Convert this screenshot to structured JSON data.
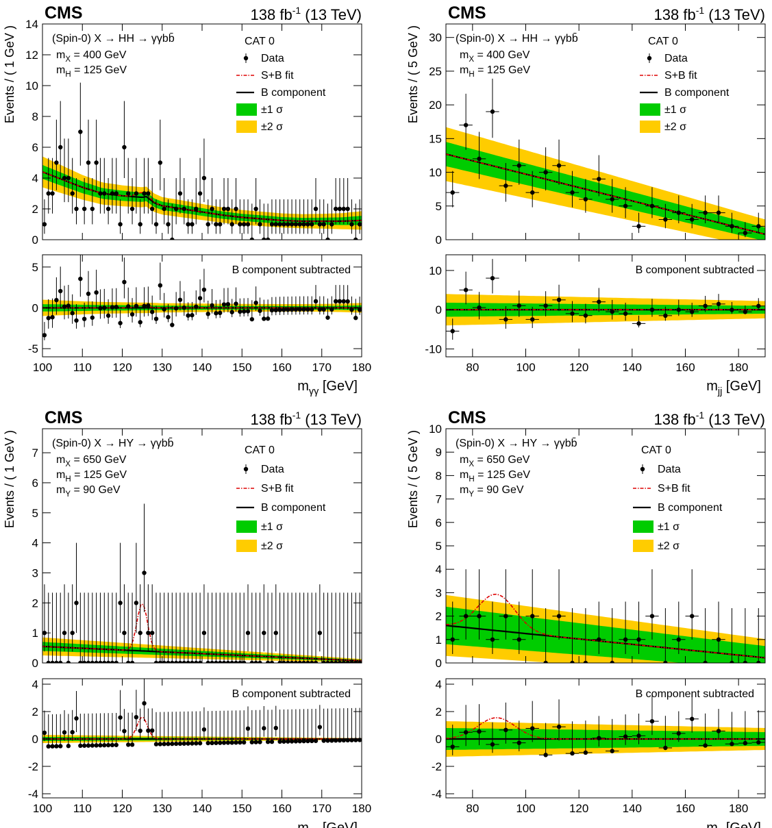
{
  "chart_data": [
    {
      "type": "scatter",
      "panel": "top-left",
      "header": {
        "experiment": "CMS",
        "lumi": "138 fb",
        "lumi_sup": "-1",
        "energy": "(13 TeV)"
      },
      "process": "(Spin-0) X → HH → γγbb̄",
      "masses": [
        "m_X = 400 GeV",
        "m_H = 125 GeV"
      ],
      "category": "CAT 0",
      "legend": {
        "data": "Data",
        "sb": "S+B fit",
        "b": "B component",
        "s1": "±1 σ",
        "s2": "±2 σ"
      },
      "ylabel": "Events / ( 1 GeV )",
      "xlabel": "m_γγ [GeV]",
      "sub_label": "B component subtracted",
      "xlim": [
        100,
        180
      ],
      "ylim": [
        0,
        14
      ],
      "sub_ylim": [
        -6,
        6.5
      ],
      "xticks": [
        100,
        110,
        120,
        130,
        140,
        150,
        160,
        170,
        180
      ],
      "yticks": [
        0,
        2,
        4,
        6,
        8,
        10,
        12,
        14
      ],
      "sub_yticks": [
        -5,
        0,
        5
      ],
      "data_x": [
        100.5,
        101.5,
        102.5,
        103.5,
        104.5,
        105.5,
        106.5,
        107.5,
        108.5,
        109.5,
        110.5,
        111.5,
        112.5,
        113.5,
        114.5,
        115.5,
        116.5,
        117.5,
        118.5,
        119.5,
        120.5,
        121.5,
        122.5,
        123.5,
        124.5,
        125.5,
        126.5,
        127.5,
        128.5,
        129.5,
        130.5,
        131.5,
        132.5,
        133.5,
        134.5,
        135.5,
        136.5,
        137.5,
        138.5,
        139.5,
        140.5,
        141.5,
        142.5,
        143.5,
        144.5,
        145.5,
        146.5,
        147.5,
        148.5,
        149.5,
        150.5,
        151.5,
        152.5,
        153.5,
        154.5,
        155.5,
        156.5,
        157.5,
        158.5,
        159.5,
        160.5,
        161.5,
        162.5,
        163.5,
        164.5,
        165.5,
        166.5,
        167.5,
        168.5,
        169.5,
        170.5,
        171.5,
        172.5,
        173.5,
        174.5,
        175.5,
        176.5,
        177.5,
        178.5,
        179.5
      ],
      "data_y": [
        1,
        3,
        3,
        5,
        6,
        4,
        4,
        3,
        2,
        7,
        2,
        5,
        2,
        5,
        3,
        3,
        2,
        3,
        3,
        1,
        6,
        3,
        2,
        3,
        1,
        3,
        3,
        2,
        1,
        5,
        2,
        1,
        0,
        2,
        3,
        2,
        1,
        1,
        2,
        3,
        4,
        1,
        2,
        1,
        1,
        2,
        2,
        1,
        2,
        1,
        1,
        1,
        0,
        2,
        1,
        0,
        0,
        1,
        1,
        1,
        1,
        1,
        1,
        1,
        1,
        1,
        1,
        1,
        2,
        1,
        1,
        0,
        1,
        2,
        2,
        2,
        2,
        1,
        0,
        1
      ],
      "bkg_x": [
        100,
        105,
        110,
        115,
        120,
        125,
        126,
        128,
        130,
        135,
        140,
        145,
        150,
        155,
        160,
        165,
        170,
        175,
        180
      ],
      "bkg_y": [
        4.4,
        3.9,
        3.4,
        3.0,
        2.85,
        2.75,
        2.8,
        2.4,
        2.2,
        2.0,
        1.8,
        1.6,
        1.45,
        1.35,
        1.25,
        1.2,
        1.2,
        1.2,
        1.25
      ],
      "band1": [
        0.45,
        0.42,
        0.38,
        0.35,
        0.33,
        0.3,
        0.3,
        0.28,
        0.27,
        0.26,
        0.25,
        0.24,
        0.23,
        0.23,
        0.22,
        0.22,
        0.23,
        0.25,
        0.3
      ],
      "band2": [
        1.0,
        0.9,
        0.8,
        0.72,
        0.68,
        0.65,
        0.65,
        0.6,
        0.57,
        0.55,
        0.52,
        0.5,
        0.48,
        0.47,
        0.46,
        0.46,
        0.48,
        0.52,
        0.6
      ],
      "sig": {
        "center": 125,
        "width": 1.5,
        "amp": 0.3
      }
    },
    {
      "type": "scatter",
      "panel": "top-right",
      "header": {
        "experiment": "CMS",
        "lumi": "138 fb",
        "lumi_sup": "-1",
        "energy": "(13 TeV)"
      },
      "process": "(Spin-0) X → HH → γγbb̄",
      "masses": [
        "m_X = 400 GeV",
        "m_H = 125 GeV"
      ],
      "category": "CAT 0",
      "legend": {
        "data": "Data",
        "sb": "S+B fit",
        "b": "B component",
        "s1": "±1 σ",
        "s2": "±2 σ"
      },
      "ylabel": "Events / ( 5 GeV )",
      "xlabel": "m_jj [GeV]",
      "sub_label": "B component subtracted",
      "xlim": [
        70,
        190
      ],
      "ylim": [
        0,
        32
      ],
      "sub_ylim": [
        -12,
        14
      ],
      "xticks": [
        80,
        100,
        120,
        140,
        160,
        180
      ],
      "yticks": [
        0,
        5,
        10,
        15,
        20,
        25,
        30
      ],
      "sub_yticks": [
        -10,
        0,
        10
      ],
      "data_x": [
        72.5,
        77.5,
        82.5,
        87.5,
        92.5,
        97.5,
        102.5,
        107.5,
        112.5,
        117.5,
        122.5,
        127.5,
        132.5,
        137.5,
        142.5,
        147.5,
        152.5,
        157.5,
        162.5,
        167.5,
        172.5,
        177.5,
        182.5,
        187.5
      ],
      "data_y": [
        7,
        17,
        12,
        19,
        8,
        11,
        7,
        10,
        11,
        7,
        6,
        9,
        6,
        5,
        2,
        5,
        3,
        4,
        3,
        4,
        4,
        2,
        1,
        2
      ],
      "bkg_x": [
        70,
        190
      ],
      "bkg_y": [
        12.7,
        0.8
      ],
      "band1": [
        1.8,
        1.0
      ],
      "band2": [
        4.0,
        2.2
      ],
      "sig": {
        "center": 125,
        "width": 5,
        "amp": 0
      }
    },
    {
      "type": "scatter",
      "panel": "bottom-left",
      "header": {
        "experiment": "CMS",
        "lumi": "138 fb",
        "lumi_sup": "-1",
        "energy": "(13 TeV)"
      },
      "process": "(Spin-0) X → HY → γγbb̄",
      "masses": [
        "m_X = 650 GeV",
        "m_H = 125 GeV",
        "m_Y = 90 GeV"
      ],
      "category": "CAT 0",
      "legend": {
        "data": "Data",
        "sb": "S+B fit",
        "b": "B component",
        "s1": "±1 σ",
        "s2": "±2 σ"
      },
      "ylabel": "Events / ( 1 GeV )",
      "xlabel": "m_γγ [GeV]",
      "sub_label": "B component subtracted",
      "xlim": [
        100,
        180
      ],
      "ylim": [
        0,
        7.8
      ],
      "sub_ylim": [
        -4.3,
        4.4
      ],
      "xticks": [
        100,
        110,
        120,
        130,
        140,
        150,
        160,
        170,
        180
      ],
      "yticks": [
        0,
        1,
        2,
        3,
        4,
        5,
        6,
        7
      ],
      "sub_yticks": [
        -4,
        -2,
        0,
        2,
        4
      ],
      "data_x": [
        100.5,
        101.5,
        102.5,
        103.5,
        104.5,
        105.5,
        106.5,
        107.5,
        108.5,
        109.5,
        110.5,
        111.5,
        112.5,
        113.5,
        114.5,
        115.5,
        116.5,
        117.5,
        118.5,
        119.5,
        120.5,
        121.5,
        122.5,
        123.5,
        124.5,
        125.5,
        126.5,
        127.5,
        128.5,
        129.5,
        130.5,
        131.5,
        132.5,
        133.5,
        134.5,
        135.5,
        136.5,
        137.5,
        138.5,
        139.5,
        140.5,
        141.5,
        142.5,
        143.5,
        144.5,
        145.5,
        146.5,
        147.5,
        148.5,
        149.5,
        150.5,
        151.5,
        152.5,
        153.5,
        154.5,
        155.5,
        156.5,
        157.5,
        158.5,
        159.5,
        160.5,
        161.5,
        162.5,
        163.5,
        164.5,
        165.5,
        166.5,
        167.5,
        168.5,
        169.5,
        170.5,
        171.5,
        172.5,
        173.5,
        174.5,
        175.5,
        176.5,
        177.5,
        178.5,
        179.5
      ],
      "data_y": [
        1,
        0,
        0,
        0,
        0,
        1,
        0,
        1,
        2,
        0,
        0,
        0,
        0,
        0,
        0,
        0,
        0,
        0,
        0,
        2,
        1,
        0,
        0,
        2,
        1,
        3,
        1,
        1,
        0,
        0,
        0,
        0,
        0,
        0,
        0,
        0,
        0,
        0,
        0,
        0,
        1,
        0,
        0,
        0,
        0,
        0,
        0,
        0,
        0,
        0,
        0,
        1,
        0,
        0,
        0,
        1,
        0,
        0,
        1,
        0,
        0,
        0,
        0,
        0,
        0,
        0,
        0,
        0,
        0,
        1,
        0,
        0,
        0,
        0,
        0,
        0,
        0,
        0,
        0,
        0
      ],
      "bkg_x": [
        100,
        180
      ],
      "bkg_y": [
        0.55,
        0.07
      ],
      "band1": [
        0.15,
        0.03
      ],
      "band2": [
        0.3,
        0.06
      ],
      "sig": {
        "center": 125,
        "width": 1.3,
        "amp": 1.6
      }
    },
    {
      "type": "scatter",
      "panel": "bottom-right",
      "header": {
        "experiment": "CMS",
        "lumi": "138 fb",
        "lumi_sup": "-1",
        "energy": "(13 TeV)"
      },
      "process": "(Spin-0) X → HY → γγbb̄",
      "masses": [
        "m_X = 650 GeV",
        "m_H = 125 GeV",
        "m_Y = 90 GeV"
      ],
      "category": "CAT 0",
      "legend": {
        "data": "Data",
        "sb": "S+B fit",
        "b": "B component",
        "s1": "±1 σ",
        "s2": "±2 σ"
      },
      "ylabel": "Events / ( 5 GeV )",
      "xlabel": "m_jj [GeV]",
      "sub_label": "B component subtracted",
      "xlim": [
        70,
        190
      ],
      "ylim": [
        0,
        10
      ],
      "sub_ylim": [
        -4.3,
        4.4
      ],
      "xticks": [
        80,
        100,
        120,
        140,
        160,
        180
      ],
      "yticks": [
        0,
        1,
        2,
        3,
        4,
        5,
        6,
        7,
        8,
        9,
        10
      ],
      "sub_yticks": [
        -4,
        -2,
        0,
        2,
        4
      ],
      "data_x": [
        72.5,
        77.5,
        82.5,
        87.5,
        92.5,
        97.5,
        102.5,
        107.5,
        112.5,
        117.5,
        122.5,
        127.5,
        132.5,
        137.5,
        142.5,
        147.5,
        152.5,
        157.5,
        162.5,
        167.5,
        172.5,
        177.5,
        182.5,
        187.5
      ],
      "data_y": [
        1,
        2,
        2,
        1,
        2,
        1,
        2,
        0,
        2,
        0,
        0,
        1,
        0,
        1,
        1,
        2,
        0,
        1,
        2,
        0,
        1,
        0,
        0,
        0
      ],
      "bkg_x": [
        70,
        190
      ],
      "bkg_y": [
        1.6,
        0.22
      ],
      "band1": [
        0.8,
        0.5
      ],
      "band2": [
        1.3,
        0.8
      ],
      "sig": {
        "center": 89,
        "width": 7,
        "amp": 1.55
      }
    }
  ]
}
